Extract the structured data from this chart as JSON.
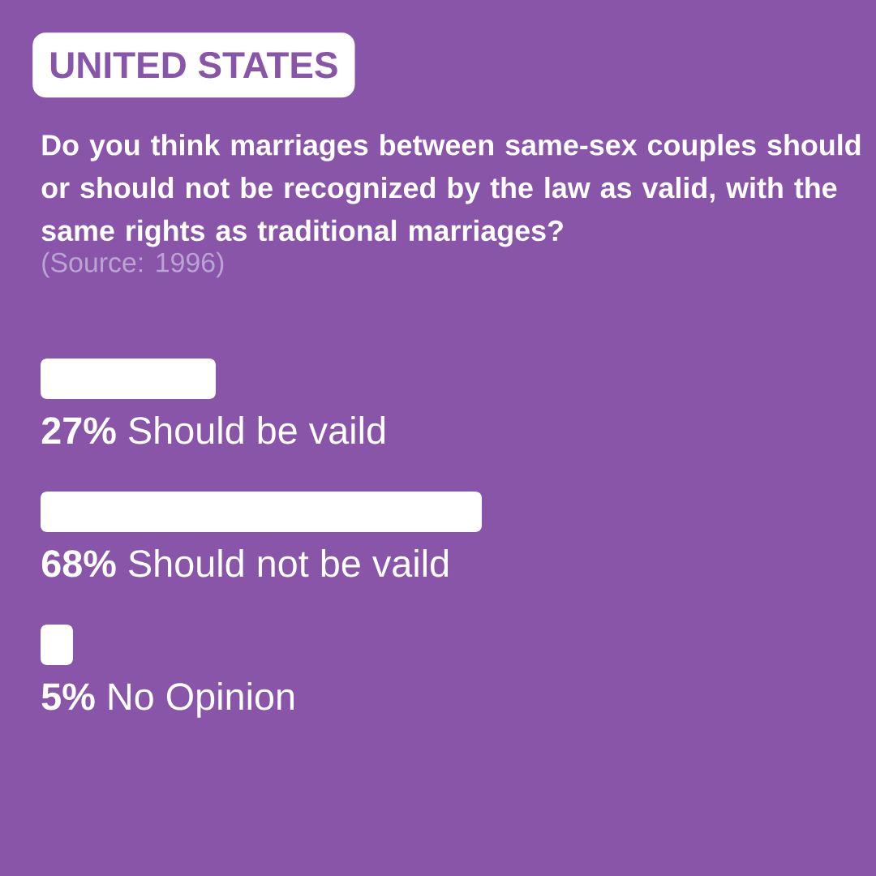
{
  "chart_data": {
    "type": "bar",
    "orientation": "horizontal",
    "title": "UNITED STATES",
    "subtitle": "Do you think marriages between same-sex couples should or should not be recognized by the law as valid, with the same rights as traditional marriages?",
    "annotations": [
      "(Source: 1996)"
    ],
    "categories": [
      "Should be vaild",
      "Should not be vaild",
      "No Opinion"
    ],
    "values": [
      27,
      68,
      5
    ],
    "value_labels": [
      "27%",
      "68%",
      "5%"
    ],
    "color": "#ffffff"
  }
}
